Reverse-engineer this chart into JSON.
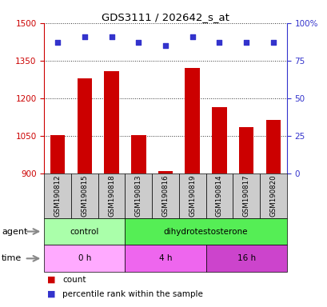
{
  "title": "GDS3111 / 202642_s_at",
  "samples": [
    "GSM190812",
    "GSM190815",
    "GSM190818",
    "GSM190813",
    "GSM190816",
    "GSM190819",
    "GSM190814",
    "GSM190817",
    "GSM190820"
  ],
  "bar_values": [
    1052,
    1280,
    1308,
    1052,
    910,
    1320,
    1165,
    1085,
    1112
  ],
  "dot_values": [
    87,
    91,
    91,
    87,
    85,
    91,
    87,
    87,
    87
  ],
  "ylim_left": [
    900,
    1500
  ],
  "ylim_right": [
    0,
    100
  ],
  "yticks_left": [
    900,
    1050,
    1200,
    1350,
    1500
  ],
  "yticks_right": [
    0,
    25,
    50,
    75,
    100
  ],
  "ytick_labels_right": [
    "0",
    "25",
    "50",
    "75",
    "100%"
  ],
  "bar_color": "#cc0000",
  "dot_color": "#3333cc",
  "bar_width": 0.55,
  "agent_groups": [
    {
      "label": "control",
      "start": 0,
      "end": 3,
      "color": "#aaffaa"
    },
    {
      "label": "dihydrotestosterone",
      "start": 3,
      "end": 9,
      "color": "#55ee55"
    }
  ],
  "time_groups": [
    {
      "label": "0 h",
      "start": 0,
      "end": 3,
      "color": "#ffaaff"
    },
    {
      "label": "4 h",
      "start": 3,
      "end": 6,
      "color": "#ee66ee"
    },
    {
      "label": "16 h",
      "start": 6,
      "end": 9,
      "color": "#cc44cc"
    }
  ],
  "legend_items": [
    {
      "color": "#cc0000",
      "label": "count"
    },
    {
      "color": "#3333cc",
      "label": "percentile rank within the sample"
    }
  ],
  "left_axis_color": "#cc0000",
  "right_axis_color": "#3333cc",
  "grid_color": "#333333",
  "sample_box_color": "#cccccc",
  "figure_width": 4.1,
  "figure_height": 3.84
}
